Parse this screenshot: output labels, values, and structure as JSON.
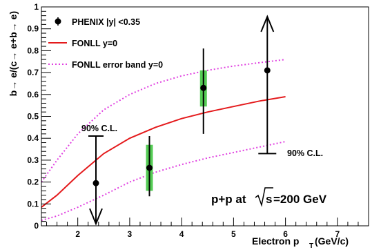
{
  "chart_data": {
    "type": "scatter",
    "title": "",
    "xlabel_main": "Electron p",
    "xlabel_sub": "T",
    "xlabel_unit": "(GeV/c)",
    "ylabel": "b→ e/(c→ e+b→ e)",
    "xlim": [
      1.3,
      7.6
    ],
    "ylim": [
      0,
      1
    ],
    "x_ticks": [
      2,
      3,
      4,
      5,
      6,
      7
    ],
    "y_ticks": [
      0,
      0.1,
      0.2,
      0.3,
      0.4,
      0.5,
      0.6,
      0.7,
      0.8,
      0.9,
      1
    ],
    "grid": false,
    "legend_position": "top-left",
    "legend": [
      {
        "label": "PHENIX |y| <0.35",
        "marker": "circle",
        "color": "#000000"
      },
      {
        "label": "FONLL y=0",
        "marker": "solid-line",
        "color": "#e41a1c"
      },
      {
        "label": "FONLL error band y=0",
        "marker": "dotted-line",
        "color": "#e040e0"
      }
    ],
    "series": [
      {
        "name": "PHENIX |y| <0.35",
        "color": "#000000",
        "points": [
          {
            "x": 2.35,
            "y": 0.195,
            "upper_limit": 0.41,
            "syst_low": null,
            "syst_high": null
          },
          {
            "x": 3.38,
            "y": 0.265,
            "stat_low": 0.135,
            "stat_high": 0.41,
            "syst_low": 0.16,
            "syst_high": 0.37
          },
          {
            "x": 4.42,
            "y": 0.63,
            "stat_low": 0.42,
            "stat_high": 0.81,
            "syst_low": 0.545,
            "syst_high": 0.71
          },
          {
            "x": 5.65,
            "y": 0.71,
            "lower_limit": 0.33,
            "syst_low": null,
            "syst_high": null
          }
        ]
      },
      {
        "name": "FONLL y=0",
        "color": "#e41a1c",
        "x": [
          1.3,
          1.6,
          2.0,
          2.5,
          3.0,
          3.5,
          4.0,
          4.5,
          5.0,
          5.5,
          6.0
        ],
        "y": [
          0.085,
          0.14,
          0.23,
          0.33,
          0.4,
          0.45,
          0.49,
          0.52,
          0.545,
          0.57,
          0.59
        ]
      },
      {
        "name": "FONLL error band y=0 (upper)",
        "color": "#e040e0",
        "x": [
          1.3,
          1.6,
          2.0,
          2.5,
          3.0,
          3.5,
          4.0,
          4.5,
          5.0,
          5.5,
          6.0
        ],
        "y": [
          0.2,
          0.3,
          0.42,
          0.53,
          0.6,
          0.65,
          0.685,
          0.71,
          0.73,
          0.745,
          0.76
        ]
      },
      {
        "name": "FONLL error band y=0 (lower)",
        "color": "#e040e0",
        "x": [
          1.3,
          1.6,
          2.0,
          2.5,
          3.0,
          3.5,
          4.0,
          4.5,
          5.0,
          5.5,
          6.0
        ],
        "y": [
          0.025,
          0.045,
          0.085,
          0.14,
          0.2,
          0.245,
          0.28,
          0.31,
          0.335,
          0.36,
          0.385
        ]
      }
    ],
    "annotations": [
      {
        "text": "90% C.L.",
        "x": 2.3,
        "y": 0.43
      },
      {
        "text": "90% C.L.",
        "x": 6.0,
        "y": 0.33
      },
      {
        "text_prefix": "p+p at",
        "text_root": "s",
        "text_suffix": "=200 GeV",
        "x": 4.45,
        "y": 0.12
      }
    ],
    "colors": {
      "syst_box": "#55cc55",
      "curve": "#e41a1c",
      "band": "#e040e0",
      "points": "#000000"
    }
  }
}
